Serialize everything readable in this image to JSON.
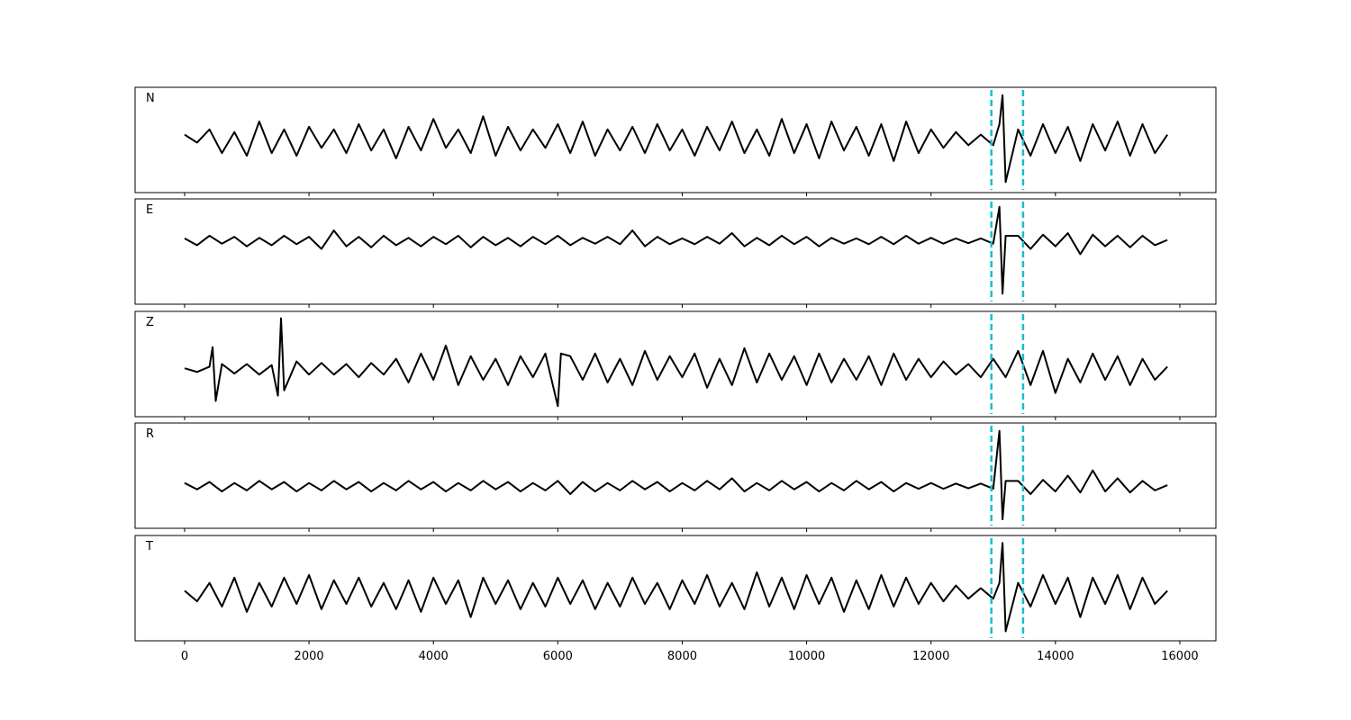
{
  "chart_data": [
    {
      "type": "line",
      "label": "N",
      "color": "#000000",
      "xlim": [
        -796,
        16580
      ],
      "ylim": [
        -1,
        1
      ],
      "vlines": [
        12970,
        13480
      ],
      "vline_color": "#17becf",
      "x": [
        0,
        200,
        400,
        600,
        800,
        1000,
        1200,
        1400,
        1600,
        1800,
        2000,
        2200,
        2400,
        2600,
        2800,
        3000,
        3200,
        3400,
        3600,
        3800,
        4000,
        4200,
        4400,
        4600,
        4800,
        5000,
        5200,
        5400,
        5600,
        5800,
        6000,
        6200,
        6400,
        6600,
        6800,
        7000,
        7200,
        7400,
        7600,
        7800,
        8000,
        8200,
        8400,
        8600,
        8800,
        9000,
        9200,
        9400,
        9600,
        9800,
        10000,
        10200,
        10400,
        10600,
        10800,
        11000,
        11200,
        11400,
        11600,
        11800,
        12000,
        12200,
        12400,
        12600,
        12800,
        13000,
        13100,
        13150,
        13200,
        13400,
        13600,
        13800,
        14000,
        14200,
        14400,
        14600,
        14800,
        15000,
        15200,
        15400,
        15600,
        15800
      ],
      "values": [
        0.1,
        -0.05,
        0.2,
        -0.25,
        0.15,
        -0.3,
        0.35,
        -0.25,
        0.2,
        -0.3,
        0.25,
        -0.15,
        0.2,
        -0.25,
        0.3,
        -0.2,
        0.2,
        -0.35,
        0.25,
        -0.2,
        0.4,
        -0.15,
        0.2,
        -0.25,
        0.45,
        -0.3,
        0.25,
        -0.2,
        0.2,
        -0.15,
        0.3,
        -0.25,
        0.35,
        -0.3,
        0.2,
        -0.2,
        0.25,
        -0.25,
        0.3,
        -0.2,
        0.2,
        -0.3,
        0.25,
        -0.2,
        0.35,
        -0.25,
        0.2,
        -0.3,
        0.4,
        -0.25,
        0.3,
        -0.35,
        0.35,
        -0.2,
        0.25,
        -0.3,
        0.3,
        -0.4,
        0.35,
        -0.25,
        0.2,
        -0.15,
        0.15,
        -0.1,
        0.1,
        -0.1,
        0.3,
        0.85,
        -0.8,
        0.2,
        -0.3,
        0.3,
        -0.25,
        0.25,
        -0.4,
        0.3,
        -0.2,
        0.35,
        -0.3,
        0.3,
        -0.25,
        0.1
      ]
    },
    {
      "type": "line",
      "label": "E",
      "color": "#000000",
      "xlim": [
        -796,
        16580
      ],
      "ylim": [
        -1.2,
        0.8
      ],
      "vlines": [
        12970,
        13480
      ],
      "vline_color": "#17becf",
      "x": [
        0,
        200,
        400,
        600,
        800,
        1000,
        1200,
        1400,
        1600,
        1800,
        2000,
        2200,
        2400,
        2600,
        2800,
        3000,
        3200,
        3400,
        3600,
        3800,
        4000,
        4200,
        4400,
        4600,
        4800,
        5000,
        5200,
        5400,
        5600,
        5800,
        6000,
        6200,
        6400,
        6600,
        6800,
        7000,
        7200,
        7400,
        7600,
        7800,
        8000,
        8200,
        8400,
        8600,
        8800,
        9000,
        9200,
        9400,
        9600,
        9800,
        10000,
        10200,
        10400,
        10600,
        10800,
        11000,
        11200,
        11400,
        11600,
        11800,
        12000,
        12200,
        12400,
        12600,
        12800,
        13000,
        13100,
        13150,
        13200,
        13400,
        13600,
        13800,
        14000,
        14200,
        14400,
        14600,
        14800,
        15000,
        15200,
        15400,
        15600,
        15800
      ],
      "values": [
        0.05,
        -0.08,
        0.1,
        -0.05,
        0.08,
        -0.1,
        0.06,
        -0.08,
        0.1,
        -0.06,
        0.08,
        -0.15,
        0.2,
        -0.1,
        0.08,
        -0.12,
        0.1,
        -0.08,
        0.06,
        -0.1,
        0.08,
        -0.06,
        0.1,
        -0.12,
        0.08,
        -0.08,
        0.06,
        -0.1,
        0.08,
        -0.06,
        0.1,
        -0.08,
        0.06,
        -0.05,
        0.08,
        -0.06,
        0.2,
        -0.1,
        0.08,
        -0.06,
        0.05,
        -0.06,
        0.08,
        -0.05,
        0.15,
        -0.1,
        0.06,
        -0.08,
        0.1,
        -0.06,
        0.08,
        -0.1,
        0.06,
        -0.05,
        0.05,
        -0.06,
        0.08,
        -0.06,
        0.1,
        -0.05,
        0.06,
        -0.05,
        0.05,
        -0.04,
        0.05,
        -0.05,
        0.65,
        -1.0,
        0.1,
        0.1,
        -0.15,
        0.12,
        -0.1,
        0.15,
        -0.25,
        0.12,
        -0.1,
        0.1,
        -0.12,
        0.1,
        -0.08,
        0.02
      ]
    },
    {
      "type": "line",
      "label": "Z",
      "color": "#000000",
      "xlim": [
        -796,
        16580
      ],
      "ylim": [
        -0.9,
        1.1
      ],
      "vlines": [
        12970,
        13480
      ],
      "vline_color": "#17becf",
      "x": [
        0,
        200,
        400,
        450,
        500,
        600,
        800,
        1000,
        1200,
        1400,
        1500,
        1550,
        1600,
        1800,
        2000,
        2200,
        2400,
        2600,
        2800,
        3000,
        3200,
        3400,
        3600,
        3800,
        4000,
        4200,
        4400,
        4600,
        4800,
        5000,
        5200,
        5400,
        5600,
        5800,
        6000,
        6050,
        6200,
        6400,
        6600,
        6800,
        7000,
        7200,
        7400,
        7600,
        7800,
        8000,
        8200,
        8400,
        8600,
        8800,
        9000,
        9200,
        9400,
        9600,
        9800,
        10000,
        10200,
        10400,
        10600,
        10800,
        11000,
        11200,
        11400,
        11600,
        11800,
        12000,
        12200,
        12400,
        12600,
        12800,
        13000,
        13200,
        13400,
        13600,
        13800,
        14000,
        14200,
        14400,
        14600,
        14800,
        15000,
        15200,
        15400,
        15600,
        15800
      ],
      "values": [
        0.02,
        -0.05,
        0.05,
        0.42,
        -0.6,
        0.1,
        -0.08,
        0.1,
        -0.1,
        0.08,
        -0.5,
        0.97,
        -0.4,
        0.15,
        -0.1,
        0.12,
        -0.1,
        0.1,
        -0.15,
        0.12,
        -0.1,
        0.2,
        -0.25,
        0.3,
        -0.2,
        0.45,
        -0.3,
        0.25,
        -0.2,
        0.2,
        -0.3,
        0.25,
        -0.15,
        0.3,
        -0.7,
        0.3,
        0.25,
        -0.2,
        0.3,
        -0.25,
        0.2,
        -0.3,
        0.35,
        -0.2,
        0.25,
        -0.15,
        0.3,
        -0.35,
        0.2,
        -0.3,
        0.4,
        -0.25,
        0.3,
        -0.2,
        0.25,
        -0.3,
        0.3,
        -0.25,
        0.2,
        -0.2,
        0.25,
        -0.3,
        0.3,
        -0.2,
        0.2,
        -0.15,
        0.15,
        -0.1,
        0.1,
        -0.15,
        0.2,
        -0.15,
        0.35,
        -0.3,
        0.35,
        -0.45,
        0.2,
        -0.25,
        0.3,
        -0.2,
        0.25,
        -0.3,
        0.2,
        -0.2,
        0.05
      ]
    },
    {
      "type": "line",
      "label": "R",
      "color": "#000000",
      "xlim": [
        -796,
        16580
      ],
      "ylim": [
        -0.8,
        1.2
      ],
      "vlines": [
        12970,
        13480
      ],
      "vline_color": "#17becf",
      "x": [
        0,
        200,
        400,
        600,
        800,
        1000,
        1200,
        1400,
        1600,
        1800,
        2000,
        2200,
        2400,
        2600,
        2800,
        3000,
        3200,
        3400,
        3600,
        3800,
        4000,
        4200,
        4400,
        4600,
        4800,
        5000,
        5200,
        5400,
        5600,
        5800,
        6000,
        6200,
        6400,
        6600,
        6800,
        7000,
        7200,
        7400,
        7600,
        7800,
        8000,
        8200,
        8400,
        8600,
        8800,
        9000,
        9200,
        9400,
        9600,
        9800,
        10000,
        10200,
        10400,
        10600,
        10800,
        11000,
        11200,
        11400,
        11600,
        11800,
        12000,
        12200,
        12400,
        12600,
        12800,
        13000,
        13100,
        13150,
        13200,
        13400,
        13600,
        13800,
        14000,
        14200,
        14400,
        14600,
        14800,
        15000,
        15200,
        15400,
        15600,
        15800
      ],
      "values": [
        0.06,
        -0.06,
        0.08,
        -0.1,
        0.06,
        -0.08,
        0.1,
        -0.06,
        0.08,
        -0.1,
        0.06,
        -0.08,
        0.1,
        -0.06,
        0.08,
        -0.1,
        0.06,
        -0.08,
        0.1,
        -0.06,
        0.08,
        -0.1,
        0.06,
        -0.08,
        0.1,
        -0.06,
        0.08,
        -0.1,
        0.06,
        -0.08,
        0.1,
        -0.15,
        0.08,
        -0.1,
        0.06,
        -0.08,
        0.1,
        -0.06,
        0.08,
        -0.1,
        0.06,
        -0.08,
        0.1,
        -0.06,
        0.15,
        -0.1,
        0.06,
        -0.08,
        0.1,
        -0.06,
        0.08,
        -0.1,
        0.06,
        -0.08,
        0.1,
        -0.06,
        0.08,
        -0.1,
        0.06,
        -0.05,
        0.06,
        -0.05,
        0.05,
        -0.04,
        0.05,
        -0.05,
        1.05,
        -0.63,
        0.1,
        0.1,
        -0.15,
        0.12,
        -0.1,
        0.2,
        -0.12,
        0.3,
        -0.1,
        0.15,
        -0.12,
        0.1,
        -0.08,
        0.02
      ]
    },
    {
      "type": "line",
      "label": "T",
      "color": "#000000",
      "xlim": [
        -796,
        16580
      ],
      "ylim": [
        -0.9,
        1.1
      ],
      "vlines": [
        12970,
        13480
      ],
      "vline_color": "#17becf",
      "xticks": [
        0,
        2000,
        4000,
        6000,
        8000,
        10000,
        12000,
        14000,
        16000
      ],
      "x": [
        0,
        200,
        400,
        600,
        800,
        1000,
        1200,
        1400,
        1600,
        1800,
        2000,
        2200,
        2400,
        2600,
        2800,
        3000,
        3200,
        3400,
        3600,
        3800,
        4000,
        4200,
        4400,
        4600,
        4800,
        5000,
        5200,
        5400,
        5600,
        5800,
        6000,
        6200,
        6400,
        6600,
        6800,
        7000,
        7200,
        7400,
        7600,
        7800,
        8000,
        8200,
        8400,
        8600,
        8800,
        9000,
        9200,
        9400,
        9600,
        9800,
        10000,
        10200,
        10400,
        10600,
        10800,
        11000,
        11200,
        11400,
        11600,
        11800,
        12000,
        12200,
        12400,
        12600,
        12800,
        13000,
        13100,
        13150,
        13200,
        13400,
        13600,
        13800,
        14000,
        14200,
        14400,
        14600,
        14800,
        15000,
        15200,
        15400,
        15600,
        15800
      ],
      "values": [
        0.05,
        -0.15,
        0.2,
        -0.25,
        0.3,
        -0.35,
        0.2,
        -0.25,
        0.3,
        -0.2,
        0.35,
        -0.3,
        0.25,
        -0.2,
        0.3,
        -0.25,
        0.2,
        -0.3,
        0.25,
        -0.35,
        0.3,
        -0.2,
        0.25,
        -0.45,
        0.3,
        -0.2,
        0.25,
        -0.3,
        0.2,
        -0.25,
        0.3,
        -0.2,
        0.25,
        -0.3,
        0.2,
        -0.25,
        0.3,
        -0.2,
        0.2,
        -0.3,
        0.25,
        -0.2,
        0.35,
        -0.25,
        0.2,
        -0.3,
        0.4,
        -0.25,
        0.3,
        -0.3,
        0.35,
        -0.2,
        0.3,
        -0.35,
        0.25,
        -0.3,
        0.35,
        -0.25,
        0.3,
        -0.2,
        0.2,
        -0.15,
        0.15,
        -0.1,
        0.1,
        -0.1,
        0.2,
        0.96,
        -0.72,
        0.2,
        -0.25,
        0.35,
        -0.2,
        0.3,
        -0.45,
        0.3,
        -0.2,
        0.35,
        -0.3,
        0.3,
        -0.2,
        0.05
      ]
    }
  ]
}
